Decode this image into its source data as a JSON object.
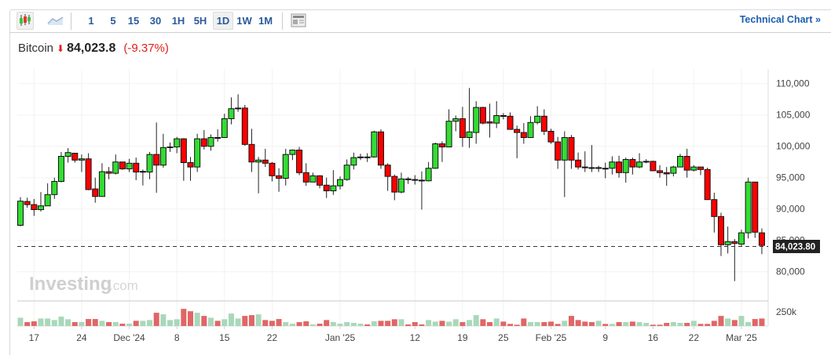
{
  "toolbar": {
    "chart_types": [
      {
        "icon": "candlestick-icon",
        "selected": true
      },
      {
        "icon": "area-chart-icon",
        "selected": false
      }
    ],
    "intervals": [
      "1",
      "5",
      "15",
      "30",
      "1H",
      "5H",
      "1D",
      "1W",
      "1M"
    ],
    "selected_interval": "1D",
    "layout_icon": "layout-icon",
    "technical_chart_label": "Technical Chart »"
  },
  "quote": {
    "name": "Bitcoin",
    "direction_icon": "arrow-down-icon",
    "price": "84,023.8",
    "change_pct": "(-9.37%)",
    "down_color": "#e0201b"
  },
  "watermark": {
    "brand": "Investing",
    "suffix": ".com"
  },
  "chart_data": {
    "type": "candlestick",
    "y_axis": {
      "ticks": [
        "110,000",
        "105,000",
        "100,000",
        "95,000",
        "90,000",
        "85,000",
        "80,000"
      ],
      "range": [
        77000,
        111000
      ],
      "position": "right"
    },
    "volume_axis": {
      "ticks": [
        "250k"
      ]
    },
    "x_ticks": [
      {
        "label": "17",
        "date": "Nov 17"
      },
      {
        "label": "24",
        "date": "Nov 24"
      },
      {
        "label": "Dec '24",
        "date": "Dec 1"
      },
      {
        "label": "8",
        "date": "Dec 8"
      },
      {
        "label": "15",
        "date": "Dec 15"
      },
      {
        "label": "22",
        "date": "Dec 22"
      },
      {
        "label": "Jan '25",
        "date": "Jan 1"
      },
      {
        "label": "12",
        "date": "Jan 12"
      },
      {
        "label": "19",
        "date": "Jan 19"
      },
      {
        "label": "25",
        "date": "Jan 25"
      },
      {
        "label": "Feb '25",
        "date": "Feb 1"
      },
      {
        "label": "9",
        "date": "Feb 9"
      },
      {
        "label": "16",
        "date": "Feb 16"
      },
      {
        "label": "22",
        "date": "Feb 22"
      },
      {
        "label": "Mar '25",
        "date": "Mar 1"
      }
    ],
    "last_price_label": "84,023.80",
    "last_price": 84023.8,
    "grid": true,
    "colors": {
      "up": "#33dd33",
      "down": "#ff0000",
      "vol_up": "#a8d8b9",
      "vol_down": "#e06666"
    },
    "columns": [
      "date",
      "open",
      "high",
      "low",
      "close",
      "volume_k"
    ],
    "candles": [
      [
        "Nov 15",
        87400,
        91900,
        87250,
        91250,
        147
      ],
      [
        "Nov 16",
        91200,
        91800,
        90200,
        90700,
        69
      ],
      [
        "Nov 17",
        90700,
        91600,
        88900,
        89900,
        83
      ],
      [
        "Nov 18",
        89900,
        92700,
        89600,
        90500,
        133
      ],
      [
        "Nov 19",
        90500,
        94100,
        90500,
        92300,
        133
      ],
      [
        "Nov 20",
        92300,
        95000,
        91600,
        94400,
        106
      ],
      [
        "Nov 21",
        94400,
        99100,
        94250,
        98400,
        166
      ],
      [
        "Nov 22",
        98400,
        99700,
        97400,
        99000,
        120
      ],
      [
        "Nov 23",
        98900,
        98900,
        97400,
        97800,
        69
      ],
      [
        "Nov 24",
        97800,
        98700,
        95900,
        98000,
        69
      ],
      [
        "Nov 25",
        98000,
        98900,
        93000,
        93100,
        124
      ],
      [
        "Nov 26",
        93200,
        95000,
        91000,
        92000,
        124
      ],
      [
        "Nov 27",
        92000,
        97300,
        92000,
        95950,
        92
      ],
      [
        "Nov 28",
        95950,
        96700,
        94750,
        95700,
        69
      ],
      [
        "Nov 29",
        95700,
        98700,
        95500,
        97500,
        69
      ],
      [
        "Nov 30",
        97500,
        97500,
        96250,
        96400,
        41
      ],
      [
        "Dec 1",
        96400,
        98000,
        95900,
        97300,
        41
      ],
      [
        "Dec 2",
        97300,
        98200,
        94600,
        95900,
        92
      ],
      [
        "Dec 3",
        95900,
        96300,
        93750,
        96000,
        92
      ],
      [
        "Dec 4",
        95900,
        99100,
        94750,
        98700,
        106
      ],
      [
        "Dec 5",
        98700,
        103800,
        92600,
        97000,
        235
      ],
      [
        "Dec 6",
        97000,
        102000,
        96600,
        99800,
        207
      ],
      [
        "Dec 7",
        99800,
        100600,
        99100,
        99900,
        106
      ],
      [
        "Dec 8",
        99900,
        101500,
        98900,
        101200,
        120
      ],
      [
        "Dec 9",
        101200,
        101300,
        94500,
        97400,
        304
      ],
      [
        "Dec 10",
        97400,
        98300,
        94500,
        96700,
        262
      ],
      [
        "Dec 11",
        96700,
        102000,
        95900,
        101200,
        235
      ],
      [
        "Dec 12",
        101200,
        102600,
        99500,
        100000,
        179
      ],
      [
        "Dec 13",
        100000,
        101900,
        99300,
        101400,
        147
      ],
      [
        "Dec 14",
        101400,
        102700,
        100750,
        101350,
        92
      ],
      [
        "Dec 15",
        101400,
        105200,
        101400,
        104400,
        120
      ],
      [
        "Dec 16",
        104400,
        107800,
        103500,
        106000,
        221
      ],
      [
        "Dec 17",
        106000,
        108300,
        105500,
        106100,
        133
      ],
      [
        "Dec 18",
        106100,
        106600,
        100100,
        100300,
        179
      ],
      [
        "Dec 19",
        100300,
        102800,
        95900,
        97500,
        193
      ],
      [
        "Dec 20",
        97500,
        98300,
        92500,
        97800,
        207
      ],
      [
        "Dec 21",
        97800,
        99600,
        96700,
        97300,
        106
      ],
      [
        "Dec 22",
        97300,
        97500,
        94400,
        95300,
        92
      ],
      [
        "Dec 23",
        95300,
        96500,
        92750,
        94900,
        124
      ],
      [
        "Dec 24",
        94900,
        99600,
        93750,
        98700,
        69
      ],
      [
        "Dec 25",
        98700,
        99500,
        97800,
        99400,
        41
      ],
      [
        "Dec 26",
        99400,
        99900,
        95400,
        95800,
        69
      ],
      [
        "Dec 27",
        95800,
        97300,
        93700,
        94300,
        83
      ],
      [
        "Dec 28",
        94300,
        95800,
        94300,
        95300,
        28
      ],
      [
        "Dec 29",
        95300,
        95400,
        93300,
        93800,
        41
      ],
      [
        "Dec 30",
        93800,
        95000,
        91750,
        92900,
        106
      ],
      [
        "Dec 31",
        92900,
        96200,
        92250,
        93700,
        69
      ],
      [
        "Jan 1",
        93700,
        95200,
        93100,
        94700,
        41
      ],
      [
        "Jan 2",
        94700,
        97900,
        94500,
        97000,
        69
      ],
      [
        "Jan 3",
        97000,
        99000,
        96300,
        98200,
        55
      ],
      [
        "Jan 4",
        98200,
        98800,
        97800,
        98300,
        41
      ],
      [
        "Jan 5",
        98300,
        98900,
        97500,
        98250,
        28
      ],
      [
        "Jan 6",
        98300,
        102500,
        98200,
        102300,
        83
      ],
      [
        "Jan 7",
        102300,
        102700,
        96400,
        97000,
        92
      ],
      [
        "Jan 8",
        97000,
        97300,
        92900,
        95200,
        92
      ],
      [
        "Jan 9",
        95200,
        95500,
        91400,
        92700,
        120
      ],
      [
        "Jan 10",
        92700,
        95800,
        92500,
        94800,
        120
      ],
      [
        "Jan 11",
        94800,
        95100,
        94000,
        94700,
        28
      ],
      [
        "Jan 12",
        94700,
        95400,
        93900,
        94600,
        69
      ],
      [
        "Jan 13",
        94600,
        96000,
        89900,
        94500,
        28
      ],
      [
        "Jan 14",
        94500,
        97500,
        94400,
        96500,
        106
      ],
      [
        "Jan 15",
        96500,
        100600,
        96400,
        100400,
        78
      ],
      [
        "Jan 16",
        100400,
        100800,
        97500,
        99900,
        92
      ],
      [
        "Jan 17",
        99900,
        105900,
        99900,
        104000,
        78
      ],
      [
        "Jan 18",
        104000,
        104900,
        102400,
        104400,
        120
      ],
      [
        "Jan 19",
        104400,
        106300,
        99900,
        101400,
        69
      ],
      [
        "Jan 20",
        101400,
        109300,
        99750,
        102300,
        106
      ],
      [
        "Jan 21",
        102200,
        107200,
        100400,
        106200,
        193
      ],
      [
        "Jan 22",
        106200,
        106300,
        103500,
        103700,
        120
      ],
      [
        "Jan 23",
        103900,
        106800,
        101400,
        103700,
        69
      ],
      [
        "Jan 24",
        103700,
        107200,
        102900,
        104900,
        133
      ],
      [
        "Jan 25",
        104900,
        105300,
        104300,
        104800,
        78
      ],
      [
        "Jan 26",
        104800,
        105400,
        102700,
        102700,
        37
      ],
      [
        "Jan 27",
        102700,
        103300,
        98100,
        102200,
        23
      ],
      [
        "Jan 28",
        102200,
        103700,
        100400,
        101400,
        133
      ],
      [
        "Jan 29",
        101400,
        104800,
        101400,
        103800,
        69
      ],
      [
        "Jan 30",
        103800,
        106400,
        103500,
        104800,
        69
      ],
      [
        "Jan 31",
        104800,
        105900,
        101800,
        102400,
        69
      ],
      [
        "Feb 1",
        102400,
        102800,
        100400,
        100700,
        78
      ],
      [
        "Feb 2",
        100700,
        101500,
        96400,
        97800,
        37
      ],
      [
        "Feb 3",
        97800,
        102400,
        91900,
        101400,
        92
      ],
      [
        "Feb 4",
        101400,
        101800,
        96400,
        97800,
        179
      ],
      [
        "Feb 5",
        97800,
        99000,
        96300,
        96700,
        106
      ],
      [
        "Feb 6",
        96700,
        99200,
        95900,
        96600,
        78
      ],
      [
        "Feb 7",
        96600,
        100200,
        95900,
        96500,
        69
      ],
      [
        "Feb 8",
        96500,
        96900,
        95900,
        96600,
        92
      ],
      [
        "Feb 9",
        96500,
        97400,
        94900,
        96400,
        37
      ],
      [
        "Feb 10",
        96500,
        98400,
        95500,
        97500,
        37
      ],
      [
        "Feb 11",
        97500,
        98500,
        95000,
        95800,
        69
      ],
      [
        "Feb 12",
        95800,
        98200,
        94200,
        97900,
        69
      ],
      [
        "Feb 13",
        97900,
        98200,
        95500,
        96700,
        78
      ],
      [
        "Feb 14",
        96700,
        98900,
        96500,
        97500,
        69
      ],
      [
        "Feb 15",
        97500,
        97950,
        97300,
        97600,
        55
      ],
      [
        "Feb 16",
        97600,
        97700,
        96100,
        96100,
        23
      ],
      [
        "Feb 17",
        96100,
        97000,
        95000,
        95800,
        23
      ],
      [
        "Feb 18",
        95800,
        96700,
        93700,
        95600,
        55
      ],
      [
        "Feb 19",
        95700,
        96900,
        95200,
        96700,
        69
      ],
      [
        "Feb 20",
        96700,
        98800,
        96700,
        98400,
        55
      ],
      [
        "Feb 21",
        98400,
        99600,
        95000,
        96200,
        55
      ],
      [
        "Feb 22",
        96200,
        97000,
        96000,
        96700,
        92
      ],
      [
        "Feb 23",
        96700,
        96700,
        95400,
        96300,
        37
      ],
      [
        "Feb 24",
        96300,
        96600,
        91500,
        91500,
        37
      ],
      [
        "Feb 25",
        91500,
        92600,
        86250,
        88800,
        92
      ],
      [
        "Feb 26",
        88800,
        89400,
        82500,
        84300,
        179
      ],
      [
        "Feb 27",
        84300,
        87200,
        82900,
        84800,
        133
      ],
      [
        "Feb 28",
        84800,
        85200,
        78500,
        84500,
        106
      ],
      [
        "Mar 1",
        84400,
        86700,
        84000,
        86200,
        179
      ],
      [
        "Mar 2",
        86200,
        95000,
        85300,
        94300,
        69
      ],
      [
        "Mar 3",
        94300,
        94300,
        85400,
        86300,
        124
      ],
      [
        "Mar 4",
        86200,
        86900,
        82800,
        84200,
        133
      ]
    ]
  }
}
